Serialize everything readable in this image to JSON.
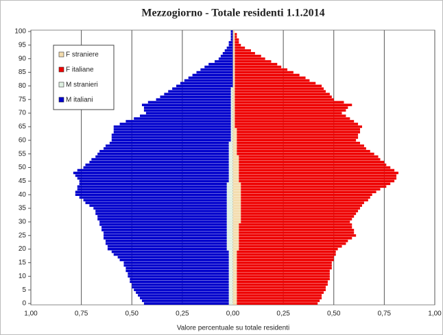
{
  "chart_data": {
    "type": "bar",
    "orientation": "horizontal",
    "stacked": true,
    "title": "Mezzogiorno - Totale residenti 1.1.2014",
    "x_label": "Valore percentuale su totale residenti",
    "legend": "upper left",
    "grid": true,
    "xlim": [
      -1,
      1
    ],
    "xticks": [
      {
        "value": -1,
        "label": "1,00"
      },
      {
        "value": -0.75,
        "label": "0,75"
      },
      {
        "value": -0.5,
        "label": "0,50"
      },
      {
        "value": -0.25,
        "label": "0,25"
      },
      {
        "value": 0,
        "label": "0,00"
      },
      {
        "value": 0.25,
        "label": "0,25"
      },
      {
        "value": 0.5,
        "label": "0,50"
      },
      {
        "value": 0.75,
        "label": "0,75"
      },
      {
        "value": 1,
        "label": "1,00"
      }
    ],
    "ylim": [
      -0.5,
      100.5
    ],
    "yticks": [
      0,
      5,
      10,
      15,
      20,
      25,
      30,
      35,
      40,
      45,
      50,
      55,
      60,
      65,
      70,
      75,
      80,
      85,
      90,
      95,
      100
    ],
    "y": [
      0,
      1,
      2,
      3,
      4,
      5,
      6,
      7,
      8,
      9,
      10,
      11,
      12,
      13,
      14,
      15,
      16,
      17,
      18,
      19,
      20,
      21,
      22,
      23,
      24,
      25,
      26,
      27,
      28,
      29,
      30,
      31,
      32,
      33,
      34,
      35,
      36,
      37,
      38,
      39,
      40,
      41,
      42,
      43,
      44,
      45,
      46,
      47,
      48,
      49,
      50,
      51,
      52,
      53,
      54,
      55,
      56,
      57,
      58,
      59,
      60,
      61,
      62,
      63,
      64,
      65,
      66,
      67,
      68,
      69,
      70,
      71,
      72,
      73,
      74,
      75,
      76,
      77,
      78,
      79,
      80,
      81,
      82,
      83,
      84,
      85,
      86,
      87,
      88,
      89,
      90,
      91,
      92,
      93,
      94,
      95,
      96,
      97,
      98,
      99,
      100
    ],
    "series": [
      {
        "name": "F straniere",
        "color": "#f3dcae",
        "values": [
          0.02,
          0.02,
          0.02,
          0.02,
          0.02,
          0.02,
          0.02,
          0.02,
          0.02,
          0.02,
          0.02,
          0.02,
          0.02,
          0.02,
          0.02,
          0.02,
          0.02,
          0.02,
          0.02,
          0.02,
          0.03,
          0.03,
          0.03,
          0.03,
          0.03,
          0.03,
          0.03,
          0.03,
          0.03,
          0.03,
          0.04,
          0.04,
          0.04,
          0.04,
          0.04,
          0.04,
          0.04,
          0.04,
          0.04,
          0.04,
          0.04,
          0.04,
          0.04,
          0.04,
          0.04,
          0.03,
          0.03,
          0.03,
          0.03,
          0.03,
          0.03,
          0.03,
          0.03,
          0.03,
          0.03,
          0.02,
          0.02,
          0.02,
          0.02,
          0.02,
          0.02,
          0.02,
          0.02,
          0.02,
          0.02,
          0.01,
          0.01,
          0.01,
          0.01,
          0.01,
          0.01,
          0.01,
          0.01,
          0.01,
          0.01,
          0.01,
          0.01,
          0.01,
          0.01,
          0.01,
          0.01,
          0.01,
          0.01,
          0.01,
          0.01,
          0.01,
          0.01,
          0.01,
          0.01,
          0.01,
          0.01,
          0.01,
          0.01,
          0.01,
          0.01,
          0.01,
          0.01,
          0.01,
          0.01,
          0.01,
          0.01
        ]
      },
      {
        "name": "F italiane",
        "color": "#ee0000",
        "values": [
          0.4,
          0.41,
          0.42,
          0.42,
          0.43,
          0.44,
          0.44,
          0.45,
          0.45,
          0.46,
          0.46,
          0.46,
          0.46,
          0.47,
          0.47,
          0.47,
          0.48,
          0.48,
          0.49,
          0.49,
          0.49,
          0.51,
          0.53,
          0.54,
          0.56,
          0.58,
          0.57,
          0.57,
          0.56,
          0.56,
          0.54,
          0.55,
          0.56,
          0.57,
          0.58,
          0.59,
          0.6,
          0.61,
          0.63,
          0.64,
          0.65,
          0.67,
          0.69,
          0.72,
          0.74,
          0.77,
          0.78,
          0.78,
          0.79,
          0.77,
          0.75,
          0.73,
          0.72,
          0.7,
          0.69,
          0.68,
          0.66,
          0.64,
          0.63,
          0.61,
          0.59,
          0.6,
          0.6,
          0.61,
          0.61,
          0.63,
          0.61,
          0.59,
          0.57,
          0.55,
          0.53,
          0.55,
          0.56,
          0.58,
          0.54,
          0.49,
          0.48,
          0.47,
          0.45,
          0.44,
          0.43,
          0.4,
          0.37,
          0.35,
          0.32,
          0.29,
          0.26,
          0.23,
          0.21,
          0.18,
          0.15,
          0.13,
          0.1,
          0.08,
          0.05,
          0.03,
          0.02,
          0.02,
          0.01,
          0.01,
          0
        ]
      },
      {
        "name": "M stranieri",
        "color": "#dff0e2",
        "values": [
          -0.02,
          -0.02,
          -0.02,
          -0.02,
          -0.02,
          -0.02,
          -0.02,
          -0.02,
          -0.02,
          -0.02,
          -0.02,
          -0.02,
          -0.02,
          -0.02,
          -0.02,
          -0.02,
          -0.02,
          -0.02,
          -0.02,
          -0.02,
          -0.03,
          -0.03,
          -0.03,
          -0.03,
          -0.03,
          -0.03,
          -0.03,
          -0.03,
          -0.03,
          -0.03,
          -0.03,
          -0.03,
          -0.03,
          -0.03,
          -0.03,
          -0.03,
          -0.03,
          -0.03,
          -0.03,
          -0.03,
          -0.03,
          -0.03,
          -0.03,
          -0.03,
          -0.03,
          -0.02,
          -0.02,
          -0.02,
          -0.02,
          -0.02,
          -0.02,
          -0.02,
          -0.02,
          -0.02,
          -0.02,
          -0.02,
          -0.02,
          -0.02,
          -0.02,
          -0.02,
          -0.01,
          -0.01,
          -0.01,
          -0.01,
          -0.01,
          -0.01,
          -0.01,
          -0.01,
          -0.01,
          -0.01,
          -0.01,
          -0.01,
          -0.01,
          -0.01,
          -0.01,
          -0.01,
          -0.01,
          -0.01,
          -0.01,
          -0.01,
          0,
          0,
          0,
          0,
          0,
          0,
          0,
          0,
          0,
          0,
          0,
          0,
          0,
          0,
          0,
          0,
          0,
          0,
          0,
          0,
          0
        ]
      },
      {
        "name": "M italiani",
        "color": "#0000cc",
        "values": [
          -0.42,
          -0.43,
          -0.44,
          -0.45,
          -0.46,
          -0.47,
          -0.48,
          -0.48,
          -0.49,
          -0.49,
          -0.5,
          -0.5,
          -0.51,
          -0.51,
          -0.52,
          -0.52,
          -0.54,
          -0.55,
          -0.57,
          -0.58,
          -0.59,
          -0.59,
          -0.6,
          -0.6,
          -0.61,
          -0.61,
          -0.61,
          -0.62,
          -0.62,
          -0.63,
          -0.63,
          -0.64,
          -0.64,
          -0.65,
          -0.65,
          -0.66,
          -0.68,
          -0.7,
          -0.71,
          -0.73,
          -0.75,
          -0.75,
          -0.74,
          -0.74,
          -0.73,
          -0.74,
          -0.75,
          -0.76,
          -0.77,
          -0.75,
          -0.72,
          -0.71,
          -0.69,
          -0.68,
          -0.66,
          -0.65,
          -0.64,
          -0.62,
          -0.61,
          -0.59,
          -0.59,
          -0.59,
          -0.59,
          -0.58,
          -0.58,
          -0.58,
          -0.55,
          -0.52,
          -0.48,
          -0.45,
          -0.42,
          -0.43,
          -0.43,
          -0.44,
          -0.41,
          -0.37,
          -0.35,
          -0.33,
          -0.31,
          -0.29,
          -0.28,
          -0.26,
          -0.24,
          -0.22,
          -0.2,
          -0.18,
          -0.16,
          -0.14,
          -0.12,
          -0.09,
          -0.07,
          -0.06,
          -0.05,
          -0.04,
          -0.03,
          -0.02,
          -0.02,
          -0.01,
          -0.01,
          -0.01,
          -0.01
        ]
      }
    ]
  }
}
